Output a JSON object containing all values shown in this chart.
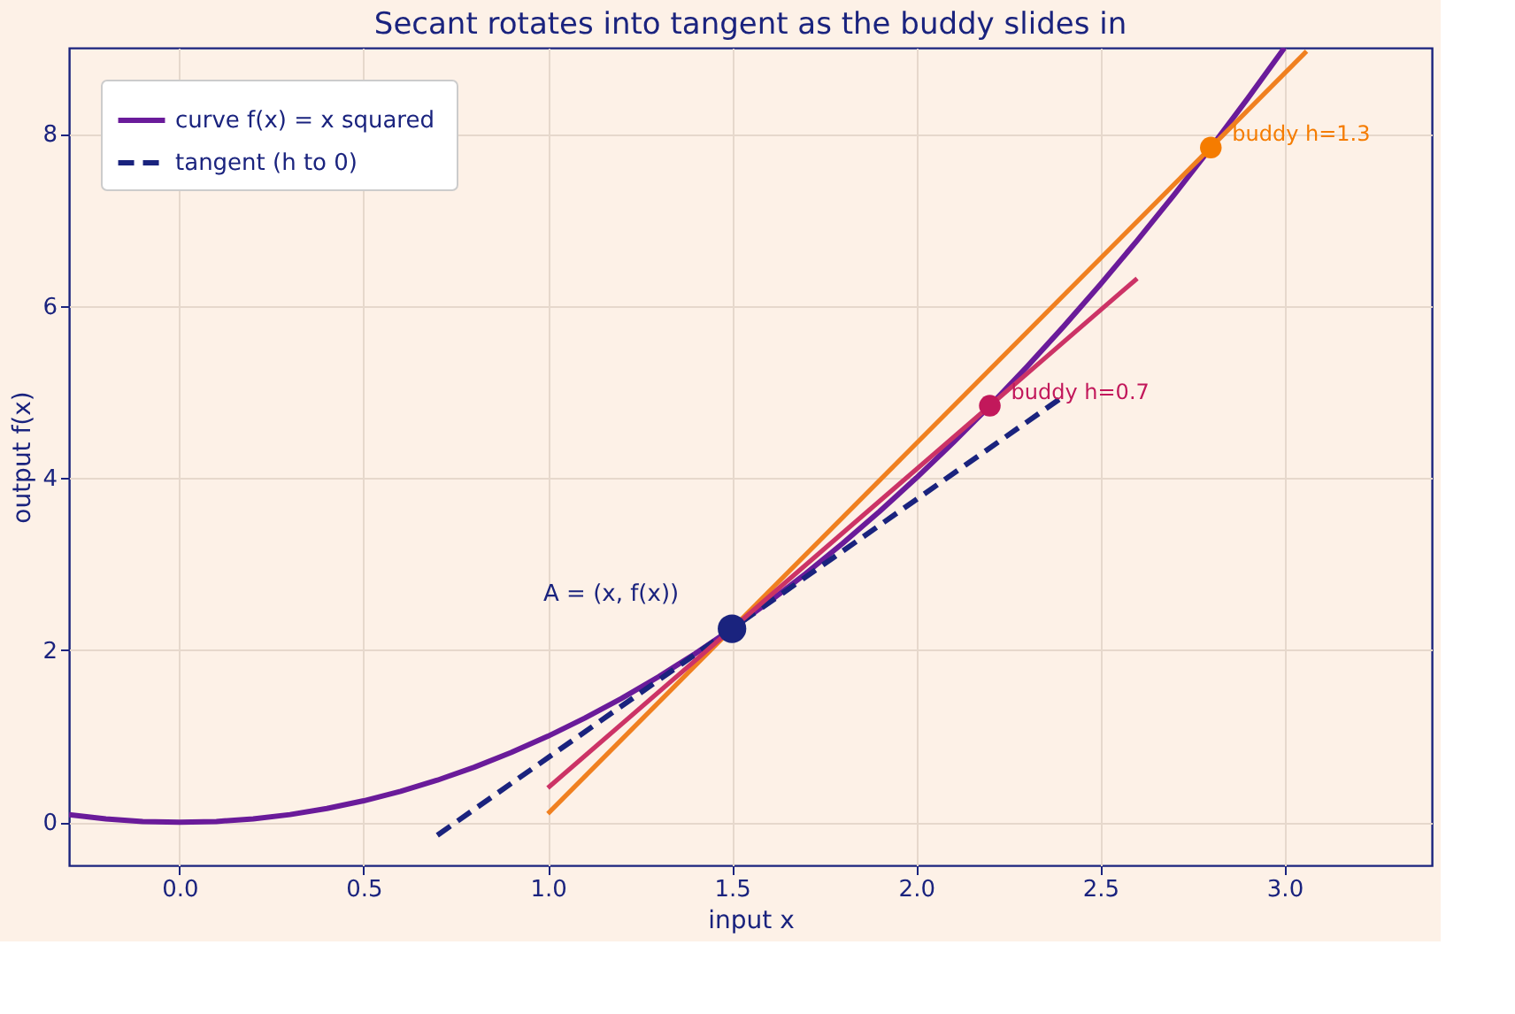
{
  "chart_data": {
    "type": "line",
    "title": "Secant rotates into tangent as the buddy slides in",
    "xlabel": "input x",
    "ylabel": "output f(x)",
    "xlim": [
      -0.3,
      3.4
    ],
    "ylim": [
      -0.5,
      9
    ],
    "xticks": [
      {
        "value": 0,
        "label": "0.0"
      },
      {
        "value": 0.5,
        "label": "0.5"
      },
      {
        "value": 1,
        "label": "1.0"
      },
      {
        "value": 1.5,
        "label": "1.5"
      },
      {
        "value": 2,
        "label": "2.0"
      },
      {
        "value": 2.5,
        "label": "2.5"
      },
      {
        "value": 3,
        "label": "3.0"
      }
    ],
    "yticks": [
      0,
      2,
      4,
      6,
      8
    ],
    "grid": true,
    "legend": "top left",
    "series": [
      {
        "name": "curve  f(x) = x squared",
        "color": "#6a1b9a",
        "line_style": "solid",
        "x": [
          -0.3,
          -0.2,
          -0.1,
          0,
          0.1,
          0.2,
          0.3,
          0.4,
          0.5,
          0.6,
          0.7,
          0.8,
          0.9,
          1.0,
          1.1,
          1.2,
          1.3,
          1.4,
          1.5,
          1.6,
          1.7,
          1.8,
          1.9,
          2.0,
          2.1,
          2.2,
          2.3,
          2.4,
          2.5,
          2.6,
          2.7,
          2.8,
          2.9,
          3.0
        ],
        "values": [
          0.09,
          0.04,
          0.01,
          0,
          0.01,
          0.04,
          0.09,
          0.16,
          0.25,
          0.36,
          0.49,
          0.64,
          0.81,
          1.0,
          1.21,
          1.44,
          1.69,
          1.96,
          2.25,
          2.56,
          2.89,
          3.24,
          3.61,
          4.0,
          4.41,
          4.84,
          5.29,
          5.76,
          6.25,
          6.76,
          7.29,
          7.84,
          8.41,
          9.0
        ]
      },
      {
        "color": "#f08020",
        "line_style": "solid",
        "x": [
          1.0,
          3.06
        ],
        "values": [
          0.1,
          8.96
        ]
      },
      {
        "color": "#cc3366",
        "line_style": "solid",
        "x": [
          1.0,
          2.6
        ],
        "values": [
          0.4,
          6.32
        ]
      },
      {
        "name": "tangent (h to 0)",
        "color": "#1a237e",
        "line_style": "dashed",
        "x": [
          0.7,
          2.4
        ],
        "values": [
          -0.15,
          4.95
        ]
      },
      {
        "type": "scatter",
        "name": "A = (x, f(x))",
        "color": "#1a237e",
        "x": [
          1.5
        ],
        "values": [
          2.25
        ]
      },
      {
        "type": "scatter",
        "name": "buddy h=0.7",
        "color": "#c2185b",
        "x": [
          2.2
        ],
        "values": [
          4.84
        ]
      },
      {
        "type": "scatter",
        "name": "buddy h=1.3",
        "color": "#f57c00",
        "x": [
          2.8
        ],
        "values": [
          7.84
        ]
      }
    ]
  }
}
